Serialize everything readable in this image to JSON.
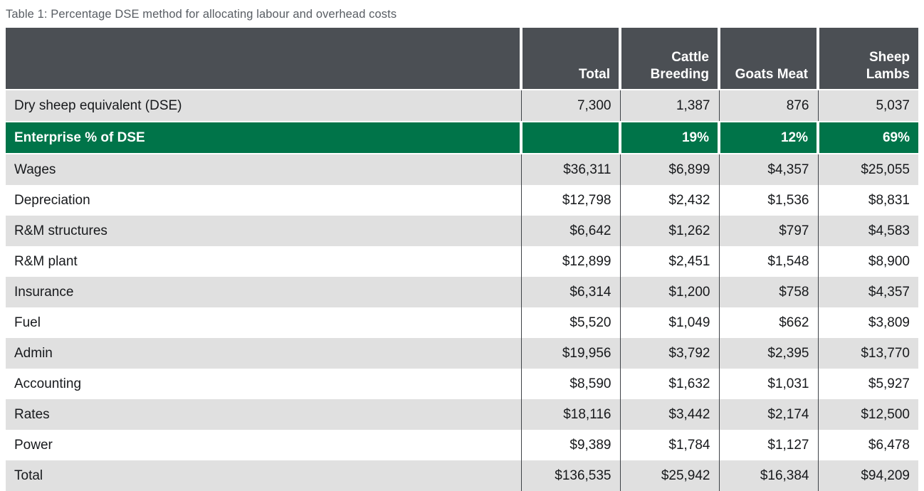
{
  "caption": "Table 1: Percentage DSE method for allocating labour and overhead costs",
  "colors": {
    "header_bg": "#4b4f54",
    "highlight_green": "#007449",
    "row_shade_gray": "#e0e0e0",
    "column_divider": "#3e4247",
    "caption_text": "#585d63"
  },
  "chart_data": {
    "type": "table",
    "title": "Table 1: Percentage DSE method for allocating labour and overhead costs",
    "columns": [
      "",
      "Total",
      "Cattle Breeding",
      "Goats Meat",
      "Sheep Lambs"
    ],
    "rows": [
      {
        "label": "Dry sheep equivalent (DSE)",
        "values": [
          "7,300",
          "1,387",
          "876",
          "5,037"
        ]
      },
      {
        "label": "Enterprise % of DSE",
        "values": [
          "",
          "19%",
          "12%",
          "69%"
        ]
      },
      {
        "label": "Wages",
        "values": [
          "$36,311",
          "$6,899",
          "$4,357",
          "$25,055"
        ]
      },
      {
        "label": "Depreciation",
        "values": [
          "$12,798",
          "$2,432",
          "$1,536",
          "$8,831"
        ]
      },
      {
        "label": "R&M structures",
        "values": [
          "$6,642",
          "$1,262",
          "$797",
          "$4,583"
        ]
      },
      {
        "label": "R&M plant",
        "values": [
          "$12,899",
          "$2,451",
          "$1,548",
          "$8,900"
        ]
      },
      {
        "label": "Insurance",
        "values": [
          "$6,314",
          "$1,200",
          "$758",
          "$4,357"
        ]
      },
      {
        "label": "Fuel",
        "values": [
          "$5,520",
          "$1,049",
          "$662",
          "$3,809"
        ]
      },
      {
        "label": "Admin",
        "values": [
          "$19,956",
          "$3,792",
          "$2,395",
          "$13,770"
        ]
      },
      {
        "label": "Accounting",
        "values": [
          "$8,590",
          "$1,632",
          "$1,031",
          "$5,927"
        ]
      },
      {
        "label": "Rates",
        "values": [
          "$18,116",
          "$3,442",
          "$2,174",
          "$12,500"
        ]
      },
      {
        "label": "Power",
        "values": [
          "$9,389",
          "$1,784",
          "$1,127",
          "$6,478"
        ]
      },
      {
        "label": "Total",
        "values": [
          "$136,535",
          "$25,942",
          "$16,384",
          "$94,209"
        ]
      }
    ]
  }
}
